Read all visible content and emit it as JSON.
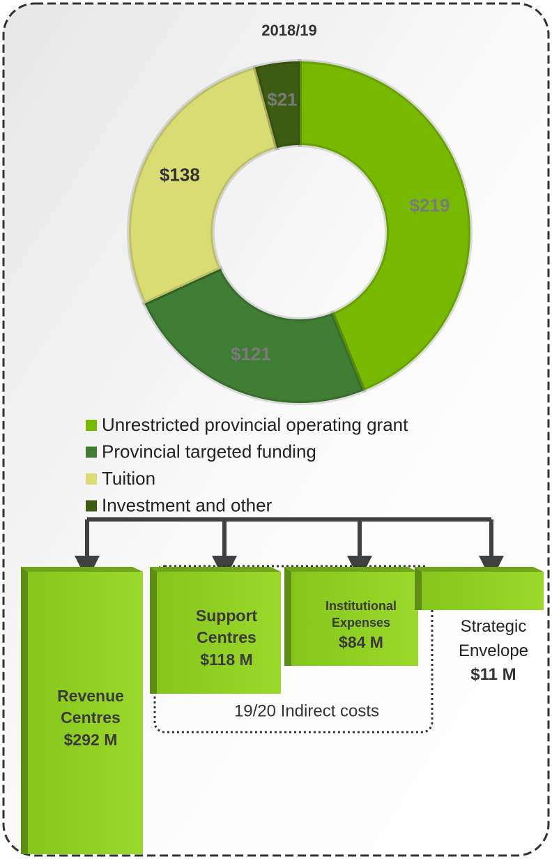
{
  "chart_data": {
    "type": "pie",
    "title": "2018/19",
    "categories": [
      "Unrestricted provincial operating grant",
      "Provincial targeted funding",
      "Tuition",
      "Investment and other"
    ],
    "values": [
      219,
      121,
      138,
      21
    ],
    "value_labels": [
      "$219",
      "$121",
      "$138",
      "$21"
    ],
    "colors": [
      "#76b900",
      "#3f7d34",
      "#d8dc72",
      "#3d5c12"
    ],
    "label_colors": [
      "#7a7a7a",
      "#7a7a7a",
      "#333333",
      "#7a7a7a"
    ],
    "donut": true,
    "legend": "bottom"
  },
  "allocations": [
    {
      "name": "Revenue Centres",
      "amount": "$292 M"
    },
    {
      "name": "Support Centres",
      "amount": "$118 M"
    },
    {
      "name": "Institutional Expenses",
      "amount": "$84 M"
    },
    {
      "name": "Strategic Envelope",
      "amount": "$11 M"
    }
  ],
  "group_label": "19/20 Indirect costs"
}
